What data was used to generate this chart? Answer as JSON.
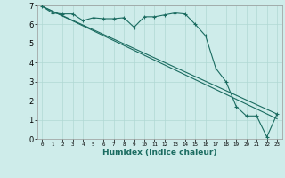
{
  "xlabel": "Humidex (Indice chaleur)",
  "xlim": [
    -0.5,
    23.5
  ],
  "ylim": [
    0,
    7
  ],
  "xticks": [
    0,
    1,
    2,
    3,
    4,
    5,
    6,
    7,
    8,
    9,
    10,
    11,
    12,
    13,
    14,
    15,
    16,
    17,
    18,
    19,
    20,
    21,
    22,
    23
  ],
  "yticks": [
    0,
    1,
    2,
    3,
    4,
    5,
    6,
    7
  ],
  "bg_color": "#ceecea",
  "line_color": "#1a6b60",
  "grid_color": "#b0d8d4",
  "line1_x": [
    0,
    23
  ],
  "line1_y": [
    6.95,
    1.05
  ],
  "line2_x": [
    0,
    23
  ],
  "line2_y": [
    6.95,
    1.3
  ],
  "curve_x": [
    0,
    1,
    2,
    3,
    4,
    5,
    6,
    7,
    8,
    9,
    10,
    11,
    12,
    13,
    14,
    15,
    16,
    17,
    18,
    19,
    20,
    21,
    22,
    23
  ],
  "curve_y": [
    6.95,
    6.6,
    6.55,
    6.55,
    6.2,
    6.35,
    6.3,
    6.3,
    6.35,
    5.85,
    6.4,
    6.4,
    6.5,
    6.6,
    6.55,
    6.0,
    5.4,
    3.7,
    3.0,
    1.7,
    1.2,
    1.2,
    0.1,
    1.3
  ],
  "figsize": [
    3.2,
    2.0
  ],
  "dpi": 100
}
